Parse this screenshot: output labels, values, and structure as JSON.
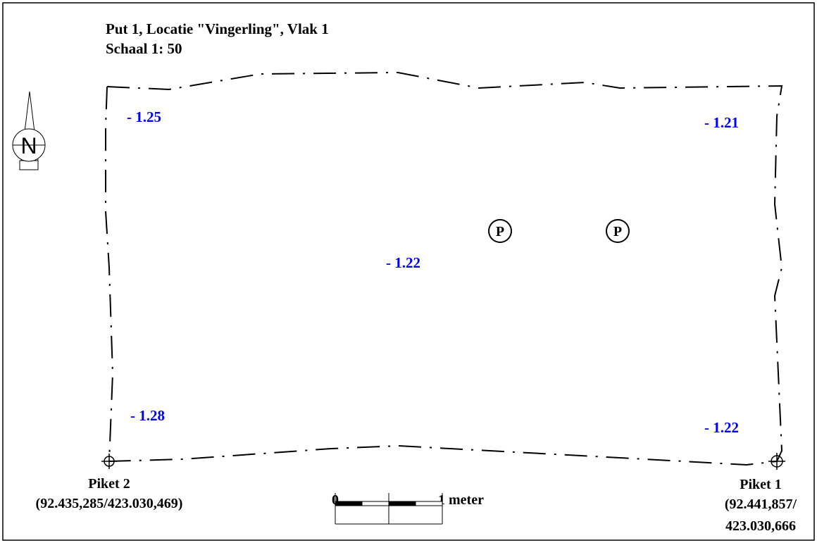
{
  "header": {
    "title": "Put 1, Locatie \"Vingerling\", Vlak 1",
    "scale": "Schaal 1: 50"
  },
  "north_arrow": {
    "label": "N"
  },
  "elevations": [
    "- 1.25",
    "- 1.21",
    "- 1.22",
    "- 1.28",
    "- 1.22"
  ],
  "features": [
    {
      "label": "P"
    },
    {
      "label": "P"
    }
  ],
  "pegs": [
    {
      "name": "Piket 2",
      "coordinates": [
        "(92.435,285/423.030,469)"
      ]
    },
    {
      "name": "Piket 1",
      "coordinates": [
        "(92.441,857/",
        "423.030,666"
      ]
    }
  ],
  "scale_bar": {
    "start": "0",
    "end": "1 meter"
  }
}
